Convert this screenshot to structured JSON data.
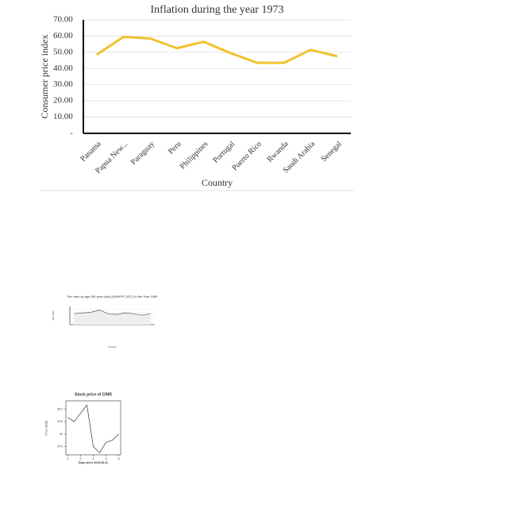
{
  "chart_data": [
    {
      "type": "line",
      "title": "Inflation during the year 1973",
      "xlabel": "Country",
      "ylabel": "Consumer price index",
      "categories": [
        "Panama",
        "Papua New...",
        "Paraguay",
        "Peru",
        "Philippines",
        "Portugal",
        "Puerto Rico",
        "Rwanda",
        "Saudi Arabia",
        "Senegal"
      ],
      "values": [
        48.5,
        59.5,
        58.5,
        52.5,
        56.5,
        49.5,
        43.5,
        43.5,
        51.5,
        47.5
      ],
      "color": "#f0c22e",
      "ylim": [
        0,
        70
      ],
      "yticks": [
        {
          "value": 0,
          "label": "-"
        },
        {
          "value": 10,
          "label": "10.00"
        },
        {
          "value": 20,
          "label": "20.00"
        },
        {
          "value": 30,
          "label": "30.00"
        },
        {
          "value": 40,
          "label": "40.00"
        },
        {
          "value": 50,
          "label": "50.00"
        },
        {
          "value": 60,
          "label": "60.00"
        },
        {
          "value": 70,
          "label": "70.00"
        }
      ],
      "grid": true
    },
    {
      "type": "area",
      "title": "Sex ratio by age (50 year olds) (UNWPP, 2017) in the Year 1990",
      "xlabel": "Country",
      "ylabel": "Sex ratio",
      "categories": [
        null,
        null,
        null,
        null,
        null,
        null,
        null,
        null,
        null,
        null
      ],
      "values": [
        95,
        96,
        97,
        100,
        95,
        94,
        96,
        95,
        93,
        95
      ],
      "color": "#555555",
      "ylim": [
        80,
        105
      ],
      "grid": true
    },
    {
      "type": "line",
      "title": "Stock price of CINR",
      "xlabel": "Days since 2016-05-11",
      "ylabel": "Price (USD)",
      "x": [
        0,
        1,
        2,
        3,
        4,
        5,
        6,
        7,
        8
      ],
      "values": [
        25.8,
        25.6,
        26.0,
        26.4,
        24.4,
        24.1,
        24.6,
        24.7,
        25.0
      ],
      "color": "#333333",
      "xlim": [
        -0.3,
        8.3
      ],
      "xticks": [
        0,
        2,
        4,
        6,
        8
      ],
      "ylim": [
        24,
        26.6
      ],
      "yticks": [
        24.4,
        25.0,
        25.6,
        26.2
      ],
      "grid": false
    }
  ]
}
